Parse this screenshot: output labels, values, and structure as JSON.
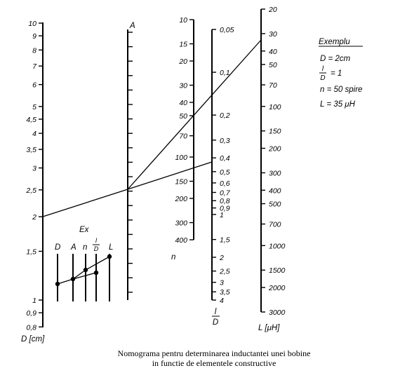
{
  "scales": {
    "D": {
      "unit_label": "D [cm]",
      "ticks": [
        {
          "v": 10,
          "label": "10"
        },
        {
          "v": 9,
          "label": "9"
        },
        {
          "v": 8,
          "label": "8"
        },
        {
          "v": 7,
          "label": "7"
        },
        {
          "v": 6,
          "label": "6"
        },
        {
          "v": 5,
          "label": "5"
        },
        {
          "v": 4.5,
          "label": "4,5"
        },
        {
          "v": 4,
          "label": "4"
        },
        {
          "v": 3.5,
          "label": "3,5"
        },
        {
          "v": 3,
          "label": "3"
        },
        {
          "v": 2.5,
          "label": "2,5"
        },
        {
          "v": 2,
          "label": "2"
        },
        {
          "v": 1.5,
          "label": "1,5"
        },
        {
          "v": 1,
          "label": "1"
        },
        {
          "v": 0.9,
          "label": "0,9"
        },
        {
          "v": 0.8,
          "label": "0,8"
        }
      ]
    },
    "A": {
      "label": "A"
    },
    "n": {
      "label": "n",
      "ticks": [
        {
          "v": 10,
          "label": "10"
        },
        {
          "v": 15,
          "label": "15"
        },
        {
          "v": 20,
          "label": "20"
        },
        {
          "v": 30,
          "label": "30"
        },
        {
          "v": 40,
          "label": "40"
        },
        {
          "v": 50,
          "label": "50"
        },
        {
          "v": 70,
          "label": "70"
        },
        {
          "v": 100,
          "label": "100"
        },
        {
          "v": 150,
          "label": "150"
        },
        {
          "v": 200,
          "label": "200"
        },
        {
          "v": 300,
          "label": "300"
        },
        {
          "v": 400,
          "label": "400"
        }
      ]
    },
    "lD": {
      "label_num": "l",
      "label_den": "D",
      "ticks": [
        {
          "v": 0.05,
          "label": "0,05"
        },
        {
          "v": 0.1,
          "label": "0,1"
        },
        {
          "v": 0.2,
          "label": "0,2"
        },
        {
          "v": 0.3,
          "label": "0,3"
        },
        {
          "v": 0.4,
          "label": "0,4"
        },
        {
          "v": 0.5,
          "label": "0,5"
        },
        {
          "v": 0.6,
          "label": "0,6"
        },
        {
          "v": 0.7,
          "label": "0,7"
        },
        {
          "v": 0.8,
          "label": "0,8"
        },
        {
          "v": 0.9,
          "label": "0,9"
        },
        {
          "v": 1,
          "label": "1"
        },
        {
          "v": 1.5,
          "label": "1,5"
        },
        {
          "v": 2,
          "label": "2"
        },
        {
          "v": 2.5,
          "label": "2,5"
        },
        {
          "v": 3,
          "label": "3"
        },
        {
          "v": 3.5,
          "label": "3,5"
        },
        {
          "v": 4,
          "label": "4"
        }
      ]
    },
    "L": {
      "unit_label": "L [μH]",
      "ticks": [
        {
          "v": 20,
          "label": "20"
        },
        {
          "v": 30,
          "label": "30"
        },
        {
          "v": 40,
          "label": "40"
        },
        {
          "v": 50,
          "label": "50"
        },
        {
          "v": 70,
          "label": "70"
        },
        {
          "v": 100,
          "label": "100"
        },
        {
          "v": 150,
          "label": "150"
        },
        {
          "v": 200,
          "label": "200"
        },
        {
          "v": 300,
          "label": "300"
        },
        {
          "v": 400,
          "label": "400"
        },
        {
          "v": 500,
          "label": "500"
        },
        {
          "v": 700,
          "label": "700"
        },
        {
          "v": 1000,
          "label": "1000"
        },
        {
          "v": 1500,
          "label": "1500"
        },
        {
          "v": 2000,
          "label": "2000"
        },
        {
          "v": 3000,
          "label": "3000"
        }
      ]
    }
  },
  "example": {
    "title": "Exemplu",
    "line_d": "D = 2cm",
    "line_ld_num": "l",
    "line_ld_den": "D",
    "line_ld_value": "= 1",
    "line_n": "n = 50 spire",
    "line_l": "L = 35 μH"
  },
  "mini_key": {
    "title": "Ex",
    "labels": [
      "D",
      "A",
      "n",
      "l",
      "D",
      "L"
    ]
  },
  "caption": {
    "line1": "Nomograma pentru determinarea inductantei unei bobine",
    "line2": "in functie de elementele constructive"
  }
}
